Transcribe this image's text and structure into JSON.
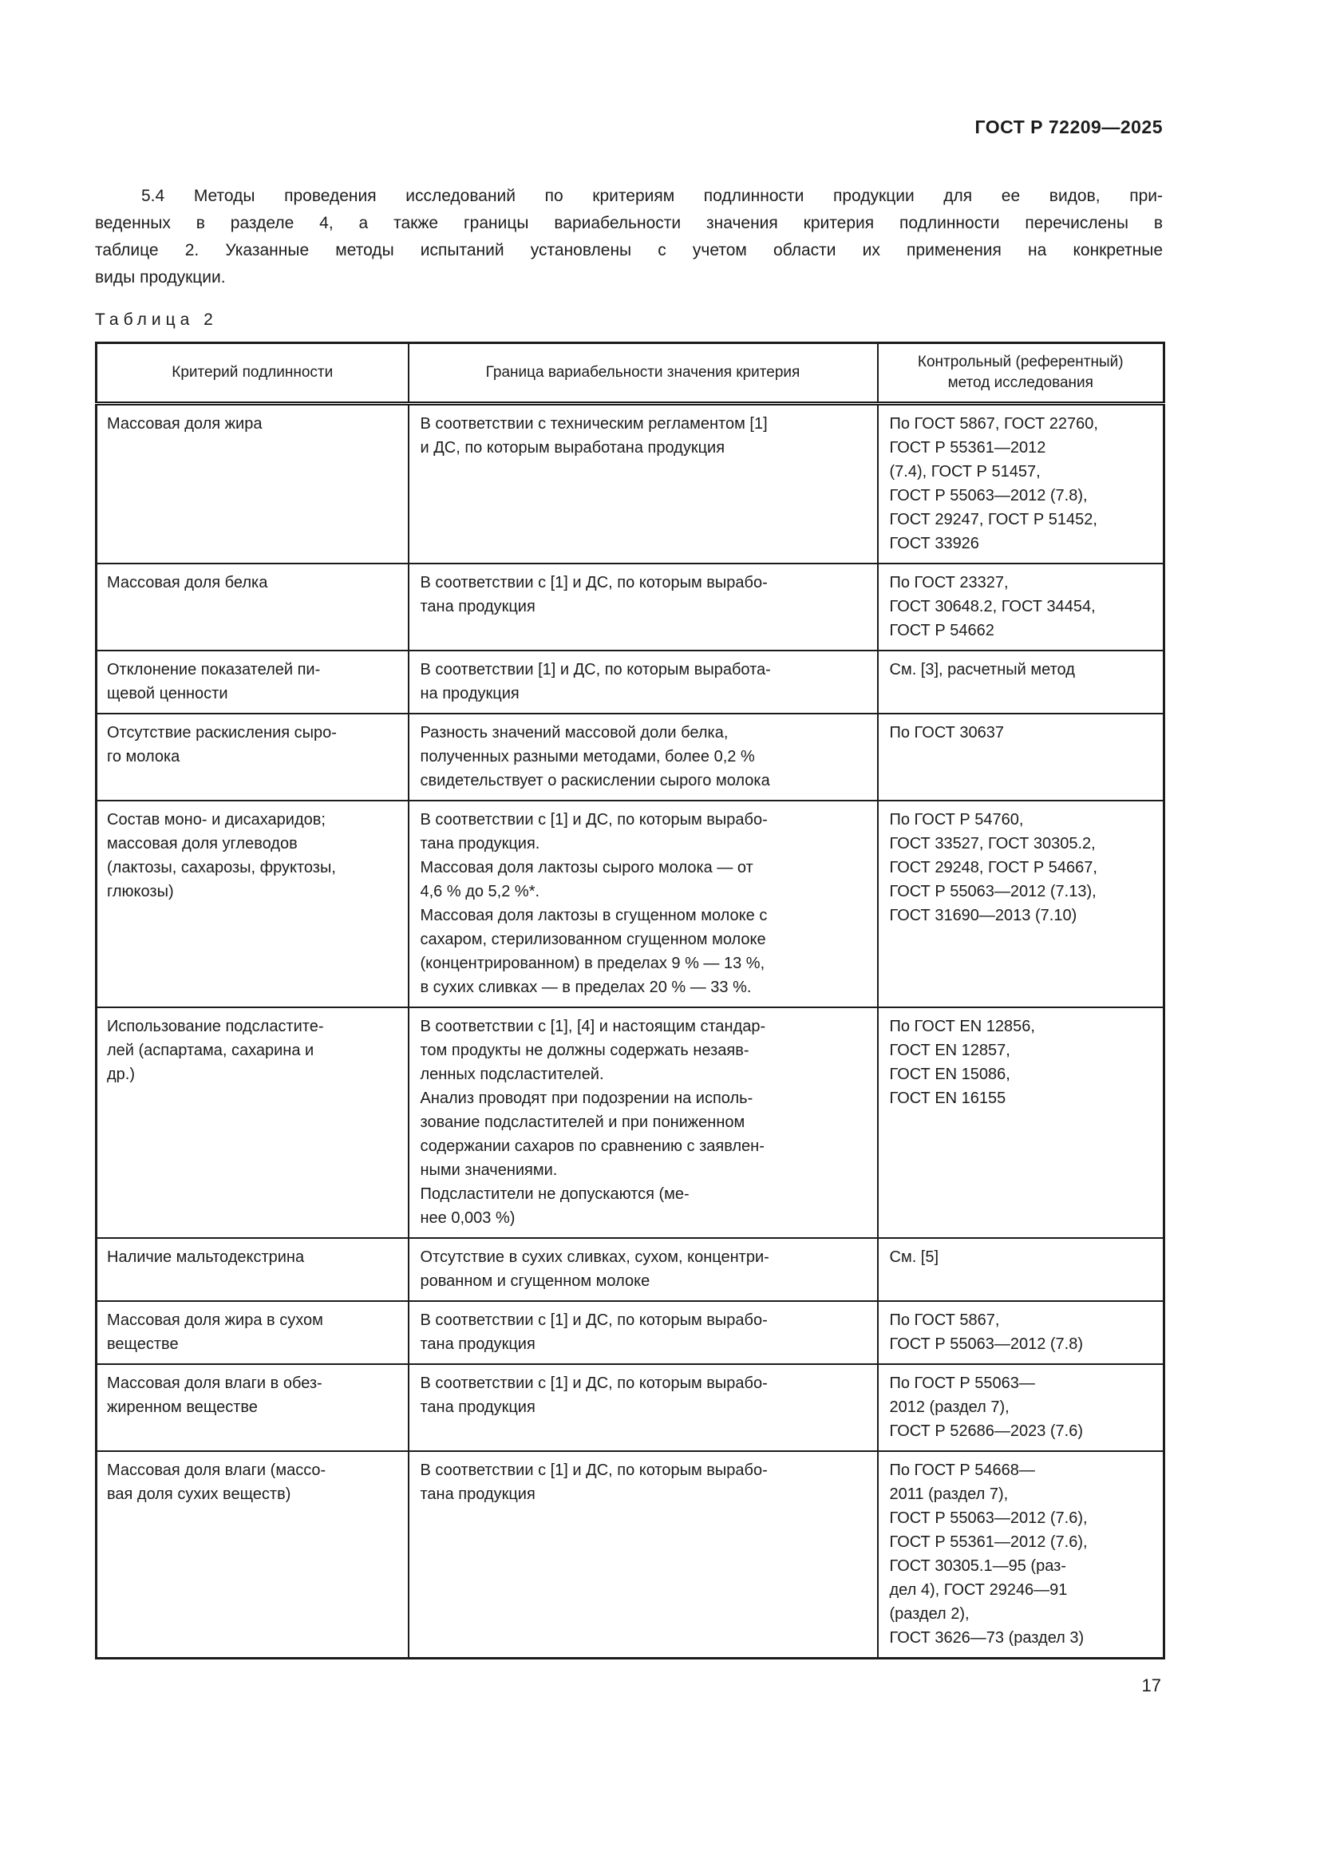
{
  "header": {
    "doc_code": "ГОСТ Р 72209—2025"
  },
  "paragraph": {
    "lines": [
      "5.4 Методы проведения исследований по критериям подлинности продукции для ее видов, при-",
      "веденных в разделе 4, а также границы вариабельности значения критерия подлинности перечислены в",
      "таблице 2. Указанные методы испытаний установлены с учетом области их применения на конкретные",
      "виды продукции."
    ]
  },
  "table": {
    "label": "Таблица 2",
    "columns": {
      "criterion": "Критерий подлинности",
      "boundary": "Граница вариабельности значения критерия",
      "method": [
        "Контрольный (референтный)",
        "метод исследования"
      ]
    },
    "rows": [
      {
        "criterion": [
          "Массовая доля жира"
        ],
        "boundary": [
          "В соответствии с техническим регламентом [1]",
          "и ДС, по которым выработана продукция"
        ],
        "method": [
          "По ГОСТ 5867, ГОСТ 22760,",
          "ГОСТ Р 55361—2012",
          "(7.4), ГОСТ Р 51457,",
          "ГОСТ Р 55063—2012 (7.8),",
          "ГОСТ 29247, ГОСТ Р 51452,",
          "ГОСТ 33926"
        ]
      },
      {
        "criterion": [
          "Массовая доля белка"
        ],
        "boundary": [
          "В соответствии с [1] и ДС, по которым вырабо-",
          "тана продукция"
        ],
        "method": [
          "По ГОСТ 23327,",
          "ГОСТ 30648.2, ГОСТ 34454,",
          "ГОСТ Р 54662"
        ]
      },
      {
        "criterion": [
          "Отклонение показателей пи-",
          "щевой ценности"
        ],
        "boundary": [
          "В соответствии [1] и ДС, по которым выработа-",
          "на продукция"
        ],
        "method": [
          "См. [3], расчетный метод"
        ]
      },
      {
        "criterion": [
          "Отсутствие раскисления сыро-",
          "го молока"
        ],
        "boundary": [
          "Разность значений массовой доли белка,",
          "полученных разными методами, более 0,2 %",
          "свидетельствует о раскислении сырого молока"
        ],
        "method": [
          "По ГОСТ 30637"
        ]
      },
      {
        "criterion": [
          "Состав моно- и дисахаридов;",
          "массовая доля углеводов",
          "(лактозы, сахарозы, фруктозы,",
          "глюкозы)"
        ],
        "boundary": [
          "В соответствии с [1] и ДС, по которым вырабо-",
          "тана продукция.",
          "Массовая доля лактозы сырого молока — от",
          "4,6 % до 5,2 %*.",
          "Массовая доля лактозы в сгущенном молоке с",
          "сахаром, стерилизованном сгущенном молоке",
          "(концентрированном) в пределах 9 % — 13 %,",
          "в сухих сливках — в пределах 20 % — 33 %."
        ],
        "method": [
          "По ГОСТ Р 54760,",
          "ГОСТ 33527, ГОСТ 30305.2,",
          "ГОСТ 29248, ГОСТ Р 54667,",
          "ГОСТ Р 55063—2012 (7.13),",
          "ГОСТ 31690—2013 (7.10)"
        ]
      },
      {
        "criterion": [
          "Использование подсластите-",
          "лей (аспартама, сахарина и",
          "др.)"
        ],
        "boundary": [
          "В соответствии с [1], [4] и настоящим стандар-",
          "том продукты не должны содержать незаяв-",
          "ленных подсластителей.",
          "Анализ проводят при подозрении на исполь-",
          "зование подсластителей и при пониженном",
          "содержании сахаров по сравнению с заявлен-",
          "ными значениями.",
          "Подсластители не допускаются (ме-",
          "нее 0,003 %)"
        ],
        "method": [
          "По ГОСТ EN 12856,",
          "ГОСТ EN 12857,",
          "ГОСТ EN 15086,",
          "ГОСТ EN 16155"
        ]
      },
      {
        "criterion": [
          "Наличие мальтодекстрина"
        ],
        "boundary": [
          "Отсутствие в сухих сливках, сухом, концентри-",
          "рованном и сгущенном молоке"
        ],
        "method": [
          "См. [5]"
        ]
      },
      {
        "criterion": [
          "Массовая доля жира в сухом",
          "веществе"
        ],
        "boundary": [
          "В соответствии с [1] и ДС, по которым вырабо-",
          "тана продукция"
        ],
        "method": [
          "По ГОСТ 5867,",
          "ГОСТ Р 55063—2012 (7.8)"
        ]
      },
      {
        "criterion": [
          "Массовая доля влаги в обез-",
          "жиренном веществе"
        ],
        "boundary": [
          "В соответствии с [1] и ДС, по которым вырабо-",
          "тана продукция"
        ],
        "method": [
          "По ГОСТ Р 55063—",
          "2012 (раздел 7),",
          "ГОСТ Р 52686—2023 (7.6)"
        ]
      },
      {
        "criterion": [
          "Массовая доля влаги (массо-",
          "вая доля сухих веществ)"
        ],
        "boundary": [
          "В соответствии с [1] и ДС, по которым вырабо-",
          "тана продукция"
        ],
        "method": [
          "По ГОСТ Р 54668—",
          "2011 (раздел 7),",
          "ГОСТ Р 55063—2012 (7.6),",
          "ГОСТ Р 55361—2012 (7.6),",
          "ГОСТ 30305.1—95 (раз-",
          "дел 4), ГОСТ 29246—91",
          "(раздел 2),",
          "ГОСТ 3626—73 (раздел 3)"
        ]
      }
    ]
  },
  "footer": {
    "page_number": "17"
  }
}
